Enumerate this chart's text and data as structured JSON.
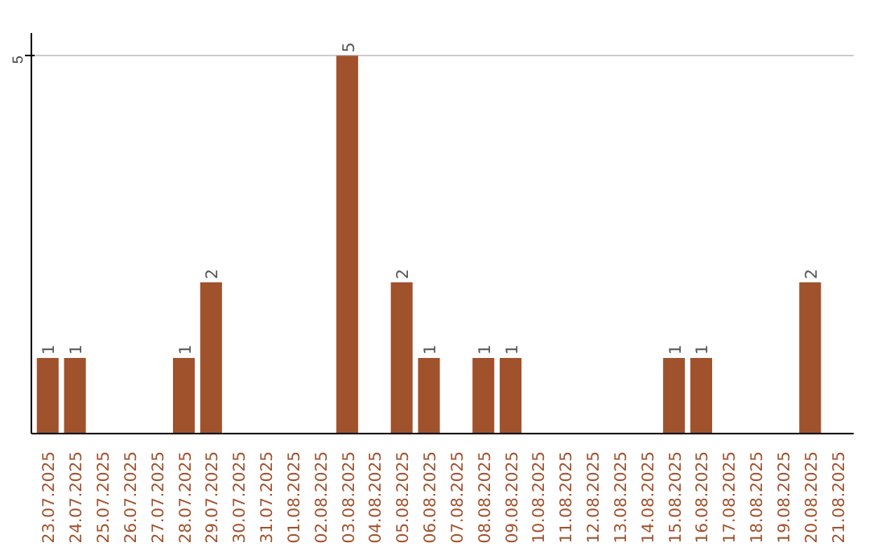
{
  "chart_data": {
    "type": "bar",
    "categories": [
      "23.07.2025",
      "24.07.2025",
      "25.07.2025",
      "26.07.2025",
      "27.07.2025",
      "28.07.2025",
      "29.07.2025",
      "30.07.2025",
      "31.07.2025",
      "01.08.2025",
      "02.08.2025",
      "03.08.2025",
      "04.08.2025",
      "05.08.2025",
      "06.08.2025",
      "07.08.2025",
      "08.08.2025",
      "09.08.2025",
      "10.08.2025",
      "11.08.2025",
      "12.08.2025",
      "13.08.2025",
      "14.08.2025",
      "15.08.2025",
      "16.08.2025",
      "17.08.2025",
      "18.08.2025",
      "19.08.2025",
      "20.08.2025",
      "21.08.2025"
    ],
    "values": [
      1,
      1,
      0,
      0,
      0,
      1,
      2,
      0,
      0,
      0,
      0,
      5,
      0,
      2,
      1,
      0,
      1,
      1,
      0,
      0,
      0,
      0,
      0,
      1,
      1,
      0,
      0,
      0,
      2,
      0
    ],
    "value_labels": [
      "1",
      "1",
      null,
      null,
      null,
      "1",
      "2",
      null,
      null,
      null,
      null,
      "5",
      null,
      "2",
      "1",
      null,
      "1",
      "1",
      null,
      null,
      null,
      null,
      null,
      "1",
      "1",
      null,
      null,
      null,
      "2",
      null
    ],
    "color": "#a0522d",
    "ylim": [
      0,
      5.3
    ],
    "yticks": [
      5
    ],
    "grid": "y"
  }
}
